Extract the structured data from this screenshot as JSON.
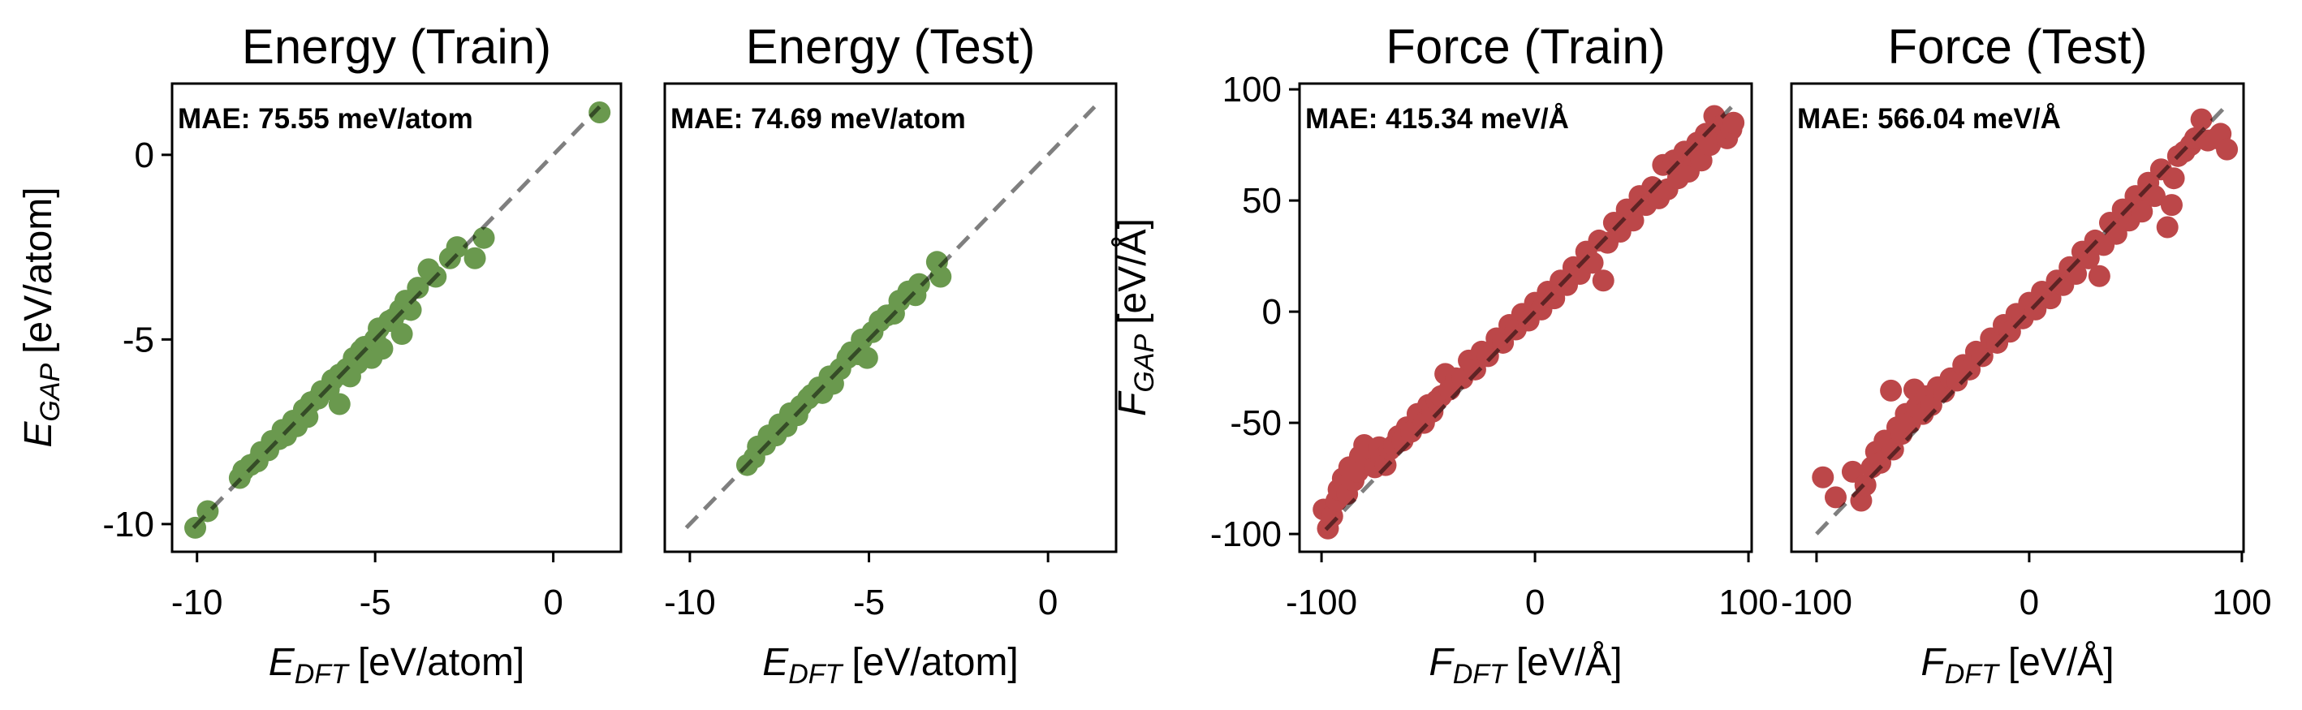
{
  "chart_data": [
    {
      "type": "scatter",
      "title": "Energy (Train)",
      "annotation": "MAE: 75.55 meV/atom",
      "xlabel": {
        "symbol": "E",
        "subscript": "DFT",
        "unit": "[eV/atom]"
      },
      "ylabel": {
        "symbol": "E",
        "subscript": "GAP",
        "unit": "[eV/atom]"
      },
      "xlim": [
        -10.7,
        1.9
      ],
      "ylim": [
        -10.75,
        1.93
      ],
      "xticks": [
        -10,
        -5,
        0
      ],
      "xtick_labels": [
        "-10",
        "-5",
        "0"
      ],
      "yticks": [
        -10,
        -5,
        0
      ],
      "ytick_labels": [
        "-10",
        "-5",
        "0"
      ],
      "color": "#6a994e",
      "parity_line": [
        -10.1,
        1.3
      ],
      "grid": false,
      "points": [
        [
          -10.05,
          -10.1
        ],
        [
          -9.7,
          -9.65
        ],
        [
          -8.8,
          -8.75
        ],
        [
          -8.7,
          -8.55
        ],
        [
          -8.5,
          -8.4
        ],
        [
          -8.3,
          -8.3
        ],
        [
          -8.2,
          -8.05
        ],
        [
          -8.0,
          -8.0
        ],
        [
          -7.9,
          -7.75
        ],
        [
          -7.7,
          -7.7
        ],
        [
          -7.6,
          -7.45
        ],
        [
          -7.5,
          -7.6
        ],
        [
          -7.3,
          -7.2
        ],
        [
          -7.2,
          -7.35
        ],
        [
          -7.0,
          -6.9
        ],
        [
          -6.9,
          -7.1
        ],
        [
          -6.8,
          -6.7
        ],
        [
          -6.6,
          -6.6
        ],
        [
          -6.5,
          -6.4
        ],
        [
          -6.3,
          -6.35
        ],
        [
          -6.2,
          -6.1
        ],
        [
          -6.0,
          -6.75
        ],
        [
          -6.0,
          -5.95
        ],
        [
          -5.8,
          -5.8
        ],
        [
          -5.7,
          -6.0
        ],
        [
          -5.6,
          -5.5
        ],
        [
          -5.5,
          -5.65
        ],
        [
          -5.4,
          -5.3
        ],
        [
          -5.3,
          -5.2
        ],
        [
          -5.1,
          -5.5
        ],
        [
          -5.0,
          -5.0
        ],
        [
          -4.9,
          -4.7
        ],
        [
          -4.8,
          -5.25
        ],
        [
          -4.6,
          -4.5
        ],
        [
          -4.5,
          -4.45
        ],
        [
          -4.3,
          -4.2
        ],
        [
          -4.25,
          -4.85
        ],
        [
          -4.15,
          -3.95
        ],
        [
          -4.0,
          -4.2
        ],
        [
          -3.8,
          -3.6
        ],
        [
          -3.5,
          -3.1
        ],
        [
          -3.3,
          -3.3
        ],
        [
          -2.9,
          -2.8
        ],
        [
          -2.7,
          -2.5
        ],
        [
          -2.2,
          -2.8
        ],
        [
          -1.95,
          -2.25
        ],
        [
          1.3,
          1.15
        ]
      ]
    },
    {
      "type": "scatter",
      "title": "Energy (Test)",
      "annotation": "MAE: 74.69 meV/atom",
      "xlabel": {
        "symbol": "E",
        "subscript": "DFT",
        "unit": "[eV/atom]"
      },
      "xlim": [
        -10.7,
        1.9
      ],
      "ylim": [
        -10.75,
        1.93
      ],
      "xticks": [
        -10,
        -5,
        0
      ],
      "xtick_labels": [
        "-10",
        "-5",
        "0"
      ],
      "color": "#6a994e",
      "parity_line": [
        -10.1,
        1.3
      ],
      "grid": false,
      "points": [
        [
          -8.4,
          -8.4
        ],
        [
          -8.2,
          -8.2
        ],
        [
          -8.1,
          -7.9
        ],
        [
          -7.9,
          -7.85
        ],
        [
          -7.8,
          -7.6
        ],
        [
          -7.6,
          -7.6
        ],
        [
          -7.5,
          -7.3
        ],
        [
          -7.3,
          -7.35
        ],
        [
          -7.2,
          -7.0
        ],
        [
          -7.0,
          -7.05
        ],
        [
          -6.9,
          -6.8
        ],
        [
          -6.7,
          -6.6
        ],
        [
          -6.6,
          -6.5
        ],
        [
          -6.4,
          -6.3
        ],
        [
          -6.3,
          -6.45
        ],
        [
          -6.1,
          -6.0
        ],
        [
          -6.0,
          -6.2
        ],
        [
          -5.8,
          -5.8
        ],
        [
          -5.6,
          -5.5
        ],
        [
          -5.5,
          -5.35
        ],
        [
          -5.3,
          -5.4
        ],
        [
          -5.2,
          -5.0
        ],
        [
          -5.05,
          -5.5
        ],
        [
          -4.9,
          -4.8
        ],
        [
          -4.7,
          -4.5
        ],
        [
          -4.5,
          -4.35
        ],
        [
          -4.3,
          -4.3
        ],
        [
          -4.15,
          -3.95
        ],
        [
          -3.9,
          -3.7
        ],
        [
          -3.7,
          -3.8
        ],
        [
          -3.6,
          -3.5
        ],
        [
          -3.1,
          -2.9
        ],
        [
          -3.0,
          -3.3
        ]
      ]
    },
    {
      "type": "scatter",
      "title": "Force (Train)",
      "annotation": "MAE: 415.34 meV/Å",
      "xlabel": {
        "symbol": "F",
        "subscript": "DFT",
        "unit": "[eV/Å]"
      },
      "ylabel": {
        "symbol": "F",
        "subscript": "GAP",
        "unit": "[eV/Å]"
      },
      "xlim": [
        -110.3,
        101.5
      ],
      "ylim": [
        -108,
        102.6
      ],
      "xticks": [
        -100,
        0,
        100
      ],
      "xtick_labels": [
        "-100",
        "0",
        "100"
      ],
      "yticks": [
        -100,
        -50,
        0,
        50,
        100
      ],
      "ytick_labels": [
        "-100",
        "-50",
        "0",
        "50",
        "100"
      ],
      "color": "#bc4749",
      "parity_line": [
        -98,
        92
      ],
      "grid": false,
      "points": [
        [
          -99,
          -89
        ],
        [
          -97,
          -97.5
        ],
        [
          -95,
          -92
        ],
        [
          -93,
          -85
        ],
        [
          -92,
          -80
        ],
        [
          -90,
          -75
        ],
        [
          -88,
          -82
        ],
        [
          -87,
          -70
        ],
        [
          -85,
          -76
        ],
        [
          -83,
          -72
        ],
        [
          -82,
          -65
        ],
        [
          -80,
          -60
        ],
        [
          -79,
          -68
        ],
        [
          -77,
          -62
        ],
        [
          -75,
          -70
        ],
        [
          -73,
          -61
        ],
        [
          -72,
          -66
        ],
        [
          -70,
          -69
        ],
        [
          -68,
          -62
        ],
        [
          -66,
          -60
        ],
        [
          -64,
          -56
        ],
        [
          -62,
          -58
        ],
        [
          -60,
          -52
        ],
        [
          -58,
          -54
        ],
        [
          -55,
          -46
        ],
        [
          -52,
          -50
        ],
        [
          -50,
          -42
        ],
        [
          -48,
          -45
        ],
        [
          -46,
          -40
        ],
        [
          -44,
          -38
        ],
        [
          -42,
          -28
        ],
        [
          -40,
          -35
        ],
        [
          -37,
          -30
        ],
        [
          -34,
          -30
        ],
        [
          -31,
          -22
        ],
        [
          -28,
          -26
        ],
        [
          -25,
          -18
        ],
        [
          -22,
          -20
        ],
        [
          -18,
          -12
        ],
        [
          -15,
          -14
        ],
        [
          -12,
          -6
        ],
        [
          -9,
          -8
        ],
        [
          -6,
          -1
        ],
        [
          -3,
          -4
        ],
        [
          0,
          4
        ],
        [
          3,
          1
        ],
        [
          6,
          9
        ],
        [
          9,
          6
        ],
        [
          12,
          14
        ],
        [
          15,
          12
        ],
        [
          18,
          20
        ],
        [
          21,
          17
        ],
        [
          24,
          27
        ],
        [
          27,
          22
        ],
        [
          30,
          32
        ],
        [
          32,
          14
        ],
        [
          34,
          31
        ],
        [
          37,
          40
        ],
        [
          40,
          36
        ],
        [
          43,
          46
        ],
        [
          46,
          41
        ],
        [
          49,
          52
        ],
        [
          52,
          48
        ],
        [
          55,
          56
        ],
        [
          58,
          51
        ],
        [
          60,
          66
        ],
        [
          62,
          55
        ],
        [
          65,
          68
        ],
        [
          67,
          60
        ],
        [
          70,
          72
        ],
        [
          72,
          63
        ],
        [
          74,
          70
        ],
        [
          76,
          76
        ],
        [
          78,
          68
        ],
        [
          80,
          80
        ],
        [
          82,
          75
        ],
        [
          84,
          88
        ],
        [
          86,
          80
        ],
        [
          88,
          84
        ],
        [
          90,
          78
        ],
        [
          92,
          82
        ],
        [
          93,
          85
        ]
      ]
    },
    {
      "type": "scatter",
      "title": "Force (Test)",
      "annotation": "MAE: 566.04 meV/Å",
      "xlabel": {
        "symbol": "F",
        "subscript": "DFT",
        "unit": "[eV/Å]"
      },
      "xlim": [
        -111.8,
        100.8
      ],
      "ylim": [
        -108,
        102.6
      ],
      "xticks": [
        -100,
        0,
        100
      ],
      "xtick_labels": [
        "-100",
        "0",
        "100"
      ],
      "color": "#bc4749",
      "parity_line": [
        -100,
        92
      ],
      "grid": false,
      "points": [
        [
          -97,
          -74.5
        ],
        [
          -91,
          -83.5
        ],
        [
          -83,
          -72
        ],
        [
          -79,
          -85
        ],
        [
          -77,
          -78
        ],
        [
          -74,
          -70
        ],
        [
          -72,
          -63
        ],
        [
          -70,
          -68
        ],
        [
          -68,
          -58
        ],
        [
          -65,
          -35.5
        ],
        [
          -64,
          -62
        ],
        [
          -62,
          -52
        ],
        [
          -60,
          -55
        ],
        [
          -58,
          -46
        ],
        [
          -56,
          -50
        ],
        [
          -54,
          -35
        ],
        [
          -53,
          -43
        ],
        [
          -50,
          -46
        ],
        [
          -48,
          -38
        ],
        [
          -46,
          -42
        ],
        [
          -43,
          -34
        ],
        [
          -40,
          -36
        ],
        [
          -37,
          -30
        ],
        [
          -34,
          -31
        ],
        [
          -31,
          -24
        ],
        [
          -28,
          -26
        ],
        [
          -25,
          -18
        ],
        [
          -22,
          -20
        ],
        [
          -18,
          -12
        ],
        [
          -15,
          -14
        ],
        [
          -12,
          -6
        ],
        [
          -9,
          -9
        ],
        [
          -6,
          -1
        ],
        [
          -3,
          -3
        ],
        [
          0,
          4
        ],
        [
          3,
          1
        ],
        [
          6,
          9
        ],
        [
          10,
          6
        ],
        [
          13,
          14
        ],
        [
          16,
          12
        ],
        [
          19,
          20
        ],
        [
          22,
          17
        ],
        [
          25,
          27
        ],
        [
          28,
          24
        ],
        [
          31,
          32
        ],
        [
          33,
          16
        ],
        [
          35,
          30
        ],
        [
          38,
          40
        ],
        [
          41,
          35
        ],
        [
          44,
          46
        ],
        [
          47,
          41
        ],
        [
          50,
          52
        ],
        [
          53,
          45
        ],
        [
          56,
          58
        ],
        [
          59,
          52
        ],
        [
          62,
          64
        ],
        [
          65,
          38
        ],
        [
          67,
          48
        ],
        [
          68,
          60
        ],
        [
          70,
          70
        ],
        [
          73,
          72
        ],
        [
          76,
          75
        ],
        [
          78,
          78
        ],
        [
          81,
          86.5
        ],
        [
          84,
          77
        ],
        [
          88,
          78
        ],
        [
          90,
          80
        ],
        [
          93,
          73
        ]
      ]
    }
  ]
}
